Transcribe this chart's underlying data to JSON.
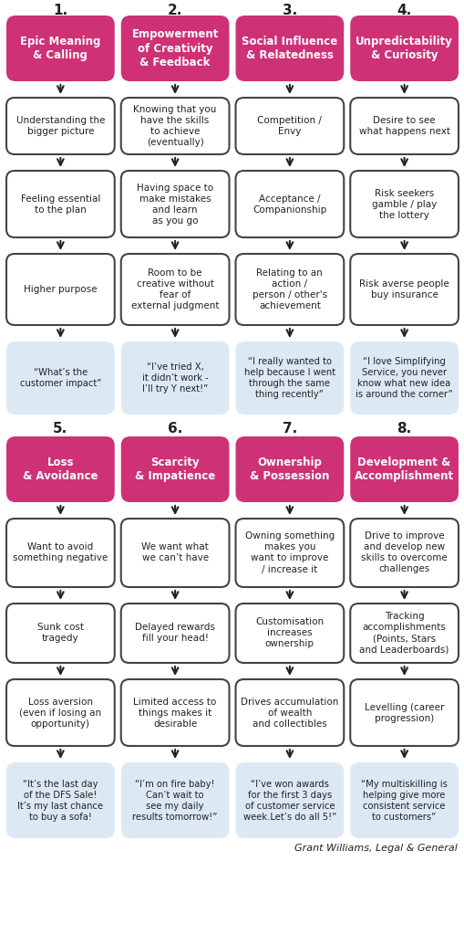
{
  "bg_color": "#ffffff",
  "pink_color": "#ce3175",
  "white_box_color": "#ffffff",
  "blue_box_color": "#dce9f5",
  "box_border_color": "#444444",
  "text_color": "#222222",
  "white_text": "#ffffff",
  "arrow_color": "#222222",
  "figsize": [
    5.1,
    10.35
  ],
  "dpi": 100,
  "header_numbers": [
    "1.",
    "2.",
    "3.",
    "4.",
    "5.",
    "6.",
    "7.",
    "8."
  ],
  "header_titles": [
    "Epic Meaning\n& Calling",
    "Empowerment\nof Creativity\n& Feedback",
    "Social Influence\n& Relatedness",
    "Unpredictability\n& Curiosity",
    "Loss\n& Avoidance",
    "Scarcity\n& Impatience",
    "Ownership\n& Possession",
    "Development &\nAccomplishment"
  ],
  "top_rows": [
    [
      "Understanding the\nbigger picture",
      "Knowing that you\nhave the skills\nto achieve\n(eventually)",
      "Competition /\nEnvy",
      "Desire to see\nwhat happens next"
    ],
    [
      "Feeling essential\nto the plan",
      "Having space to\nmake mistakes\nand learn\nas you go",
      "Acceptance /\nCompanionship",
      "Risk seekers\ngamble / play\nthe lottery"
    ],
    [
      "Higher purpose",
      "Room to be\ncreative without\nfear of\nexternal judgment",
      "Relating to an\naction /\nperson / other's\nachievement",
      "Risk averse people\nbuy insurance"
    ],
    [
      "“What’s the\ncustomer impact”",
      "“I’ve tried X,\nit didn’t work -\nI’ll try Y next!”",
      "“I really wanted to\nhelp because I went\nthrough the same\nthing recently”",
      "“I love Simplifying\nService, you never\nknow what new idea\nis around the corner”"
    ]
  ],
  "bottom_rows": [
    [
      "Want to avoid\nsomething negative",
      "We want what\nwe can’t have",
      "Owning something\nmakes you\nwant to improve\n/ increase it",
      "Drive to improve\nand develop new\nskills to overcome\nchallenges"
    ],
    [
      "Sunk cost\ntragedy",
      "Delayed rewards\nfill your head!",
      "Customisation\nincreases\nownership",
      "Tracking\naccomplishments\n(Points, Stars\nand Leaderboards)"
    ],
    [
      "Loss aversion\n(even if losing an\nopportunity)",
      "Limited access to\nthings makes it\ndesirable",
      "Drives accumulation\nof wealth\nand collectibles",
      "Levelling (career\nprogression)"
    ],
    [
      "“It’s the last day\nof the DFS Sale!\nIt’s my last chance\nto buy a sofa!",
      "“I’m on fire baby!\nCan’t wait to\nsee my daily\nresults tomorrow!”",
      "“I’ve won awards\nfor the first 3 days\nof customer service\nweek.Let’s do all 5!”",
      "“My multiskilling is\nhelping give more\nconsistent service\nto customers”"
    ]
  ],
  "credit": "Grant Williams, Legal & General"
}
